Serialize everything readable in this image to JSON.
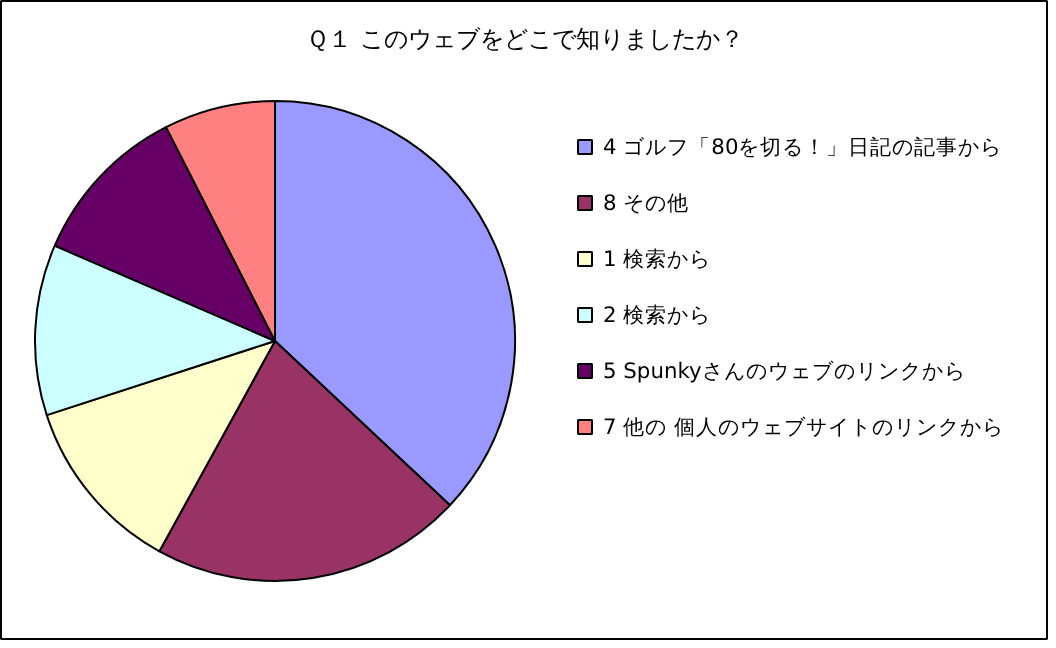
{
  "chart_data": {
    "type": "pie",
    "title": "Ｑ１ このウェブをどこで知りましたか？",
    "categories": [
      "4 ゴルフ「80を切る！」日記の記事から",
      "8 その他",
      "1 検索から",
      "2 検索から",
      "5 Spunkyさんのウェブのリンクから",
      "7 他の 個人のウェブサイトのリンクから"
    ],
    "values": [
      37,
      21,
      12,
      11.5,
      11,
      7.5
    ],
    "colors": [
      "#9999ff",
      "#993366",
      "#ffffcc",
      "#ccffff",
      "#660066",
      "#ff8080"
    ],
    "legend": "right"
  }
}
